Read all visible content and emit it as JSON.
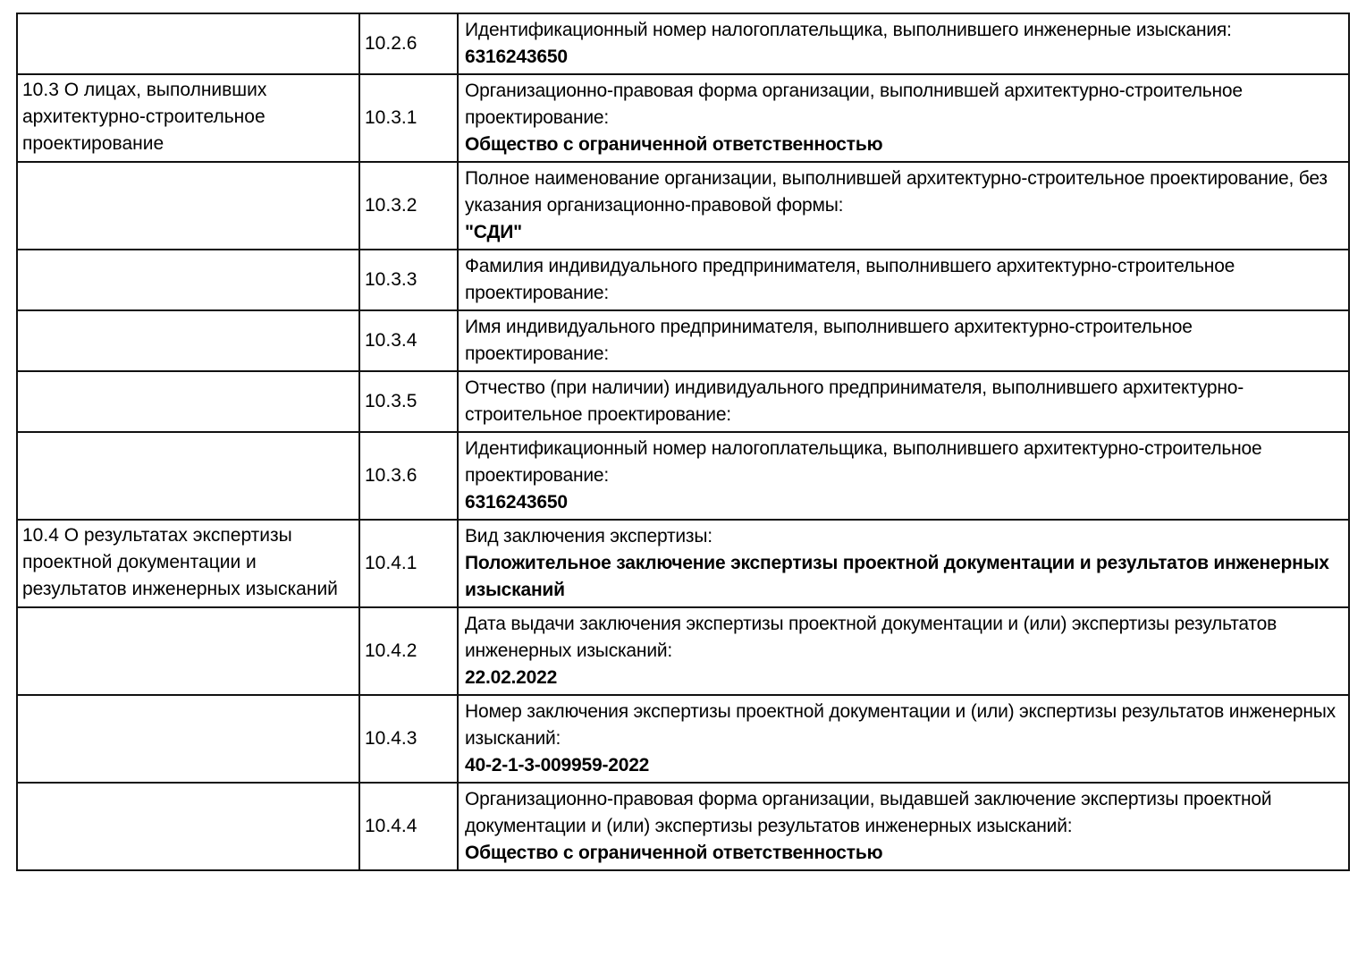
{
  "table": {
    "rows": [
      {
        "section": "",
        "code": "10.2.6",
        "label": "Идентификационный номер налогоплательщика, выполнившего инженерные изыскания:",
        "value": "6316243650"
      },
      {
        "section": "10.3 О лицах, выполнивших архитектурно-строительное проектирование",
        "code": "10.3.1",
        "label": "Организационно-правовая форма организации, выполнившей архитектурно-строительное проектирование:",
        "value": "Общество с ограниченной ответственностью"
      },
      {
        "section": "",
        "code": "10.3.2",
        "label": "Полное наименование организации, выполнившей архитектурно-строительное проектирование, без указания организационно-правовой формы:",
        "value": "\"СДИ\""
      },
      {
        "section": "",
        "code": "10.3.3",
        "label": "Фамилия индивидуального предпринимателя, выполнившего архитектурно-строительное проектирование:",
        "value": ""
      },
      {
        "section": "",
        "code": "10.3.4",
        "label": "Имя индивидуального предпринимателя, выполнившего архитектурно-строительное проектирование:",
        "value": ""
      },
      {
        "section": "",
        "code": "10.3.5",
        "label": "Отчество (при наличии) индивидуального предпринимателя, выполнившего архитектурно-строительное проектирование:",
        "value": ""
      },
      {
        "section": "",
        "code": "10.3.6",
        "label": "Идентификационный номер налогоплательщика, выполнившего архитектурно-строительное проектирование:",
        "value": "6316243650"
      },
      {
        "section": "10.4 О результатах экспертизы проектной документации и результатов инженерных изысканий",
        "code": "10.4.1",
        "label": "Вид заключения экспертизы:",
        "value": "Положительное заключение экспертизы проектной документации и результатов инженерных изысканий"
      },
      {
        "section": "",
        "code": "10.4.2",
        "label": "Дата выдачи заключения экспертизы проектной документации и (или) экспертизы результатов инженерных изысканий:",
        "value": "22.02.2022"
      },
      {
        "section": "",
        "code": "10.4.3",
        "label": "Номер заключения экспертизы проектной документации и (или) экспертизы результатов инженерных изысканий:",
        "value": "40-2-1-3-009959-2022"
      },
      {
        "section": "",
        "code": "10.4.4",
        "label": "Организационно-правовая форма организации, выдавшей заключение экспертизы проектной документации и (или) экспертизы результатов инженерных изысканий:",
        "value": "Общество с ограниченной ответственностью"
      }
    ]
  }
}
